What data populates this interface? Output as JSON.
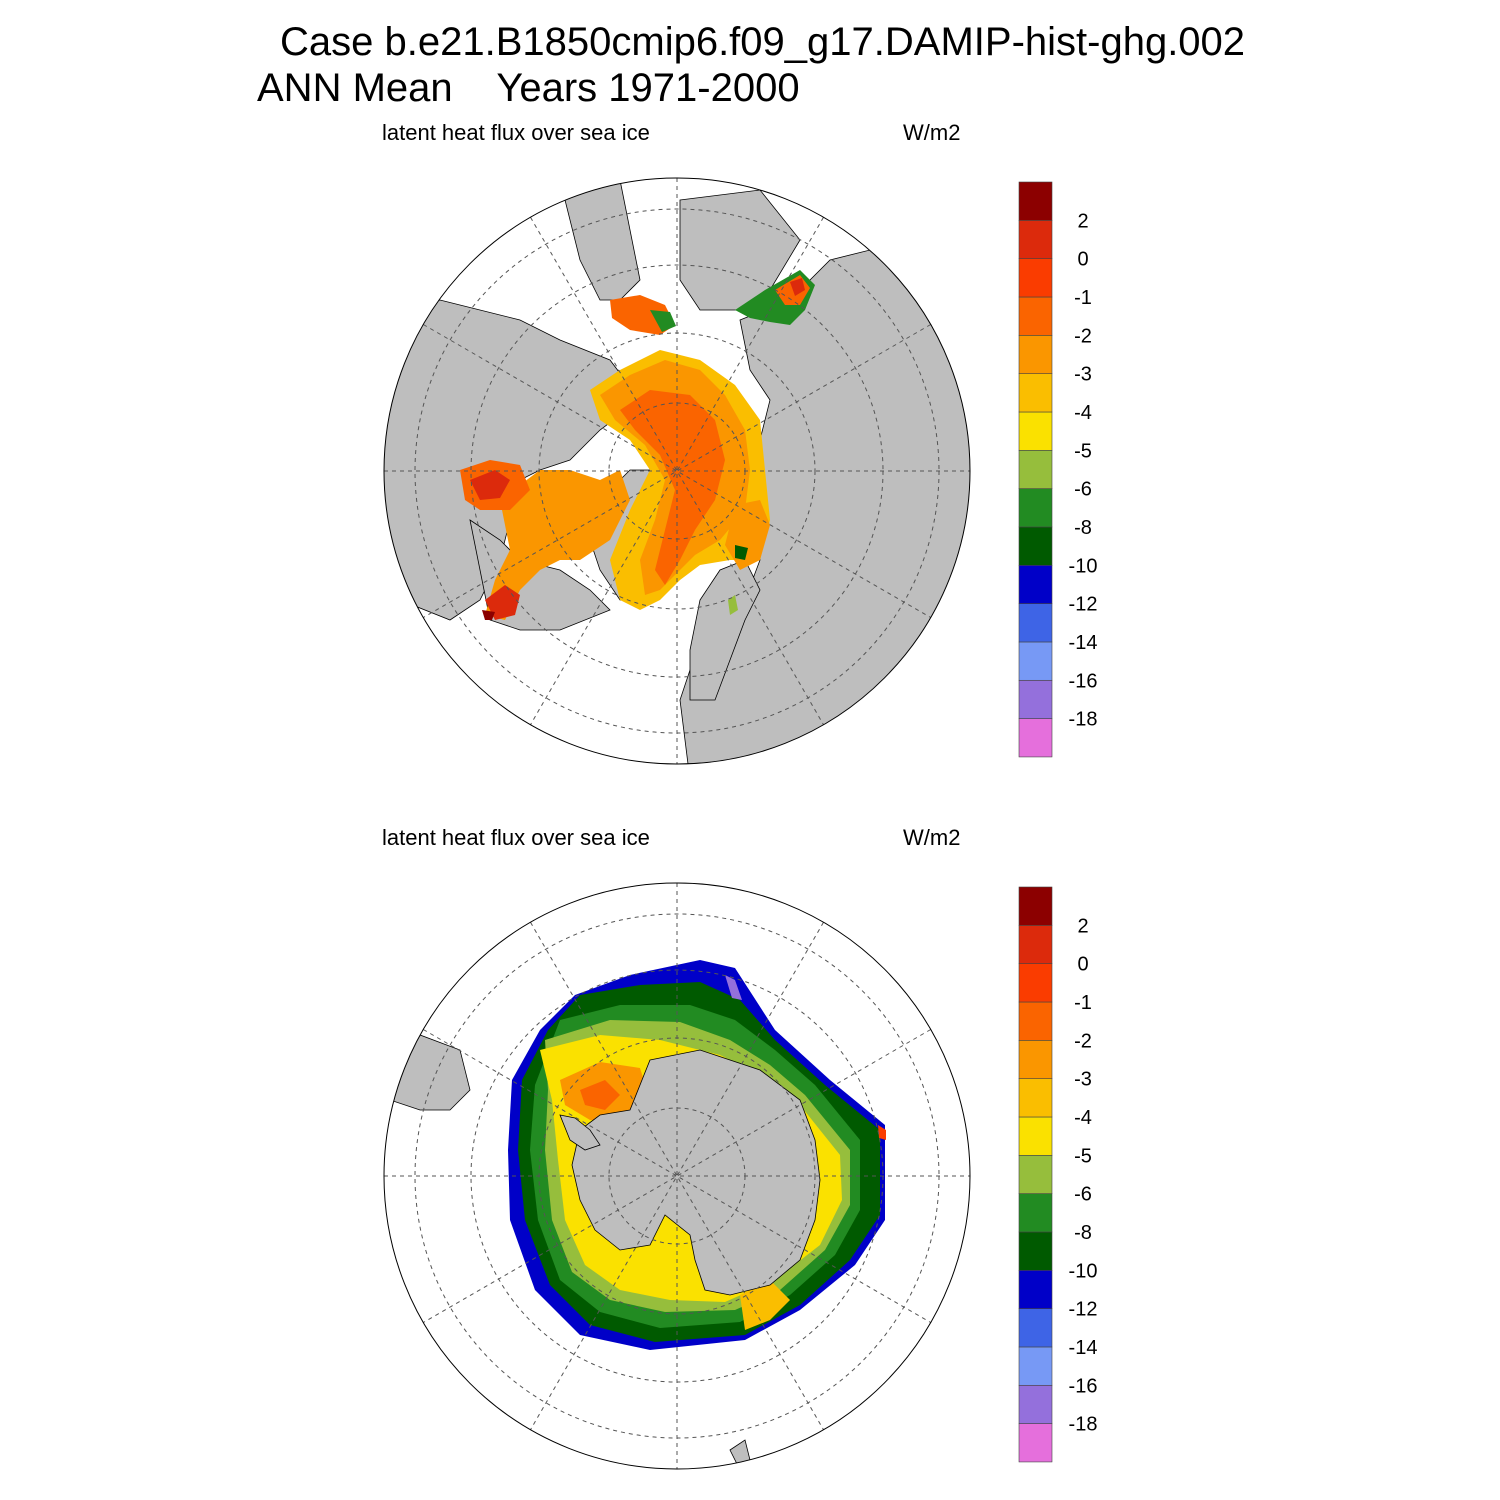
{
  "title": {
    "line1": "Case b.e21.B1850cmip6.f09_g17.DAMIP-hist-ghg.002",
    "line2": "ANN Mean    Years 1971-2000"
  },
  "colors": {
    "land": "#bebebe",
    "ocean": "#ffffff",
    "bins": [
      "#e56fdc",
      "#9470dc",
      "#7799f5",
      "#3e64e6",
      "#0000c8",
      "#005a00",
      "#228b22",
      "#96be3c",
      "#fae100",
      "#fabe00",
      "#fa9600",
      "#fa6400",
      "#fa3c00",
      "#dc2a0c",
      "#8c0000"
    ]
  },
  "colorbar": {
    "labels": [
      "-18",
      "-16",
      "-14",
      "-12",
      "-10",
      "-8",
      "-6",
      "-5",
      "-4",
      "-3",
      "-2",
      "-1",
      "0",
      "2"
    ]
  },
  "panels": [
    {
      "id": "north",
      "variable": "latent heat flux over sea ice",
      "units": "W/m2"
    },
    {
      "id": "south",
      "variable": "latent heat flux over sea ice",
      "units": "W/m2"
    }
  ]
}
